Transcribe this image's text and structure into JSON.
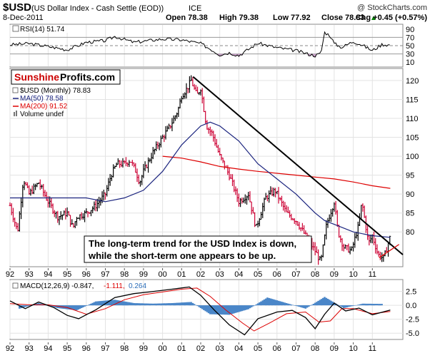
{
  "header": {
    "symbol": "$USD",
    "name": "(US Dollar Index - Cash Settle (EOD))",
    "exchange": "ICE",
    "copyright": "@ StockCharts.com",
    "date": "8-Dec-2011",
    "open_label": "Open 78.38",
    "high_label": "High 79.38",
    "low_label": "Low 77.92",
    "close_label": "Close 78.83",
    "chg_label": "Chg +0.45 (+0.57%)",
    "chg_arrow": "▲"
  },
  "logo": {
    "part1": "Sunshine",
    "part2": "Profits.com"
  },
  "legend": {
    "main": "$USD (Monthly) 78.83",
    "ma50": "MA(50) 78.58",
    "ma200": "MA(200) 91.52",
    "volume": "Volume undef"
  },
  "rsi_panel": {
    "label": "RSI(14) 51.74"
  },
  "macd_panel": {
    "label": "MACD(12,26,9) -0.847,",
    "signal_value": "-1.111,",
    "hist_value": "0.264"
  },
  "annotation": {
    "line1": "The long-term trend for the USD Index is down,",
    "line2": "while the short-term one appears to be up."
  },
  "colors": {
    "price_up": "#000000",
    "price_down": "#cc0033",
    "ma50": "#1a237e",
    "ma200": "#dd0000",
    "trendline": "#000000",
    "short_trend": "#dd0000",
    "macd_line": "#000000",
    "signal_line": "#dd0000",
    "histogram": "#4a86c8",
    "rsi_fill": "#c8a2c8",
    "annotation_border": "#000000"
  },
  "chart_data": [
    {
      "type": "line",
      "panel": "price",
      "x_ticks": [
        "92",
        "93",
        "94",
        "95",
        "96",
        "97",
        "98",
        "99",
        "00",
        "01",
        "02",
        "03",
        "04",
        "05",
        "06",
        "07",
        "08",
        "09",
        "10",
        "11"
      ],
      "y_ticks": [
        80,
        85,
        90,
        95,
        100,
        105,
        110,
        115,
        120
      ],
      "ylim": [
        71,
        123
      ],
      "xlim": [
        1992.0,
        2012.6
      ],
      "series": [
        {
          "key": "price",
          "x": [
            1992.0,
            1992.4,
            1992.7,
            1993.0,
            1993.5,
            1994.0,
            1994.5,
            1995.0,
            1995.3,
            1995.5,
            1996.0,
            1996.5,
            1997.0,
            1997.3,
            1997.6,
            1998.0,
            1998.3,
            1998.6,
            1998.8,
            1999.0,
            1999.5,
            2000.0,
            2000.4,
            2000.8,
            2001.0,
            2001.3,
            2001.5,
            2001.8,
            2002.0,
            2002.3,
            2002.6,
            2003.0,
            2003.5,
            2004.0,
            2004.5,
            2004.9,
            2005.4,
            2005.9,
            2006.5,
            2007.0,
            2007.5,
            2008.0,
            2008.3,
            2008.6,
            2009.0,
            2009.2,
            2009.5,
            2009.9,
            2010.3,
            2010.45,
            2010.8,
            2011.0,
            2011.3,
            2011.6,
            2011.94
          ],
          "y": [
            87,
            80,
            94,
            90,
            93,
            88,
            84,
            85,
            81,
            84,
            85,
            87,
            90,
            95,
            98,
            98,
            99,
            96,
            93,
            96,
            101,
            105,
            108,
            112,
            116,
            118,
            120,
            116,
            118,
            108,
            106,
            100,
            95,
            88,
            90,
            81,
            89,
            91,
            85,
            83,
            79,
            75,
            72,
            82,
            88,
            80,
            76,
            75,
            82,
            88,
            77,
            79,
            74,
            73,
            78.83
          ]
        },
        {
          "key": "ma50",
          "x": [
            1992.0,
            1993.0,
            1994.0,
            1995.0,
            1996.0,
            1997.0,
            1998.0,
            1999.0,
            2000.0,
            2001.0,
            2002.0,
            2002.5,
            2003.0,
            2004.0,
            2005.0,
            2006.0,
            2007.0,
            2008.0,
            2008.5,
            2009.0,
            2010.0,
            2011.0,
            2011.94
          ],
          "y": [
            89,
            89,
            89,
            89,
            89,
            88,
            89,
            91,
            96,
            103,
            108,
            109,
            108,
            104,
            98,
            94,
            90,
            85,
            83,
            82,
            80,
            79,
            78.58
          ]
        },
        {
          "key": "ma200",
          "x": [
            2000.0,
            2001.0,
            2002.0,
            2003.0,
            2004.0,
            2005.0,
            2006.0,
            2007.0,
            2008.0,
            2009.0,
            2010.0,
            2011.0,
            2011.94
          ],
          "y": [
            100,
            99.5,
            98.5,
            97.3,
            96.6,
            96,
            95.5,
            95,
            94.5,
            94,
            93.2,
            92.2,
            91.52
          ]
        }
      ],
      "trendlines": [
        {
          "key": "long_term",
          "x": [
            2001.6,
            2012.6
          ],
          "y": [
            121,
            74
          ]
        },
        {
          "key": "short_term",
          "x": [
            2011.35,
            2012.4
          ],
          "y": [
            73.2,
            76.7
          ]
        }
      ]
    },
    {
      "type": "line",
      "panel": "rsi",
      "y_ticks": [
        10,
        30,
        50,
        70,
        90
      ],
      "ylim": [
        0,
        100
      ],
      "series": [
        {
          "key": "rsi",
          "x": [
            1992.0,
            1993.0,
            1994.0,
            1995.0,
            1996.0,
            1997.0,
            1997.5,
            1998.5,
            2000.0,
            2001.0,
            2002.0,
            2002.5,
            2003.0,
            2003.5,
            2004.0,
            2005.0,
            2006.0,
            2007.0,
            2007.6,
            2008.0,
            2008.3,
            2008.5,
            2008.8,
            2009.0,
            2009.4,
            2010.0,
            2010.4,
            2011.0,
            2011.5,
            2011.94
          ],
          "y": [
            52,
            55,
            48,
            40,
            58,
            62,
            72,
            58,
            66,
            64,
            55,
            42,
            28,
            33,
            26,
            56,
            45,
            38,
            30,
            26,
            31,
            82,
            74,
            55,
            46,
            60,
            53,
            38,
            53,
            51.74
          ]
        }
      ]
    },
    {
      "type": "line",
      "panel": "macd",
      "y_ticks": [
        2.5,
        0.0,
        -2.5,
        -5.0
      ],
      "ylim": [
        -6,
        4.5
      ],
      "series": [
        {
          "key": "macd",
          "x": [
            1992.0,
            1992.8,
            1993.5,
            1994.3,
            1995.0,
            1995.6,
            1996.5,
            1997.5,
            1998.5,
            1999.3,
            2000.5,
            2001.4,
            2002.0,
            2002.7,
            2003.5,
            2004.3,
            2005.0,
            2006.0,
            2006.8,
            2007.5,
            2008.0,
            2008.5,
            2009.0,
            2009.6,
            2010.3,
            2011.0,
            2011.94
          ],
          "y": [
            0.8,
            -0.6,
            0.6,
            -0.4,
            -1.8,
            -2.4,
            -0.8,
            1.4,
            2.1,
            2.4,
            2.9,
            3.3,
            1.8,
            -0.8,
            -3.5,
            -5.3,
            -2.4,
            -1.2,
            -0.9,
            -2.2,
            -4.2,
            -1.6,
            0.4,
            -1.0,
            -0.5,
            -1.7,
            -0.847
          ]
        },
        {
          "key": "signal",
          "x": [
            1992.0,
            1993.0,
            1994.0,
            1995.0,
            1996.0,
            1997.0,
            1998.0,
            1999.0,
            2000.0,
            2001.0,
            2001.8,
            2002.5,
            2003.3,
            2004.2,
            2004.8,
            2005.6,
            2006.5,
            2007.5,
            2008.2,
            2008.8,
            2009.4,
            2010.0,
            2011.0,
            2011.94
          ],
          "y": [
            0.3,
            0.1,
            0.1,
            -0.4,
            -1.6,
            -0.6,
            1.0,
            1.9,
            2.4,
            2.9,
            3.1,
            1.6,
            -0.8,
            -3.2,
            -4.6,
            -3.2,
            -1.5,
            -1.2,
            -3.0,
            -2.8,
            -0.6,
            -0.6,
            -1.5,
            -1.111
          ]
        },
        {
          "key": "histogram",
          "x": [
            1992.5,
            1993.5,
            1994.5,
            1995.5,
            1996.5,
            1997.5,
            1998.5,
            1999.5,
            2000.5,
            2001.5,
            2002.5,
            2003.5,
            2004.5,
            2005.5,
            2006.5,
            2007.5,
            2008.5,
            2009.5,
            2010.5,
            2011.5
          ],
          "y": [
            -0.6,
            0.4,
            -0.5,
            -0.9,
            0.7,
            1.0,
            0.4,
            0.3,
            0.4,
            0.6,
            -1.6,
            -1.7,
            -0.7,
            1.4,
            0.4,
            -0.6,
            1.5,
            -0.5,
            0.3,
            0.26
          ]
        }
      ]
    }
  ]
}
